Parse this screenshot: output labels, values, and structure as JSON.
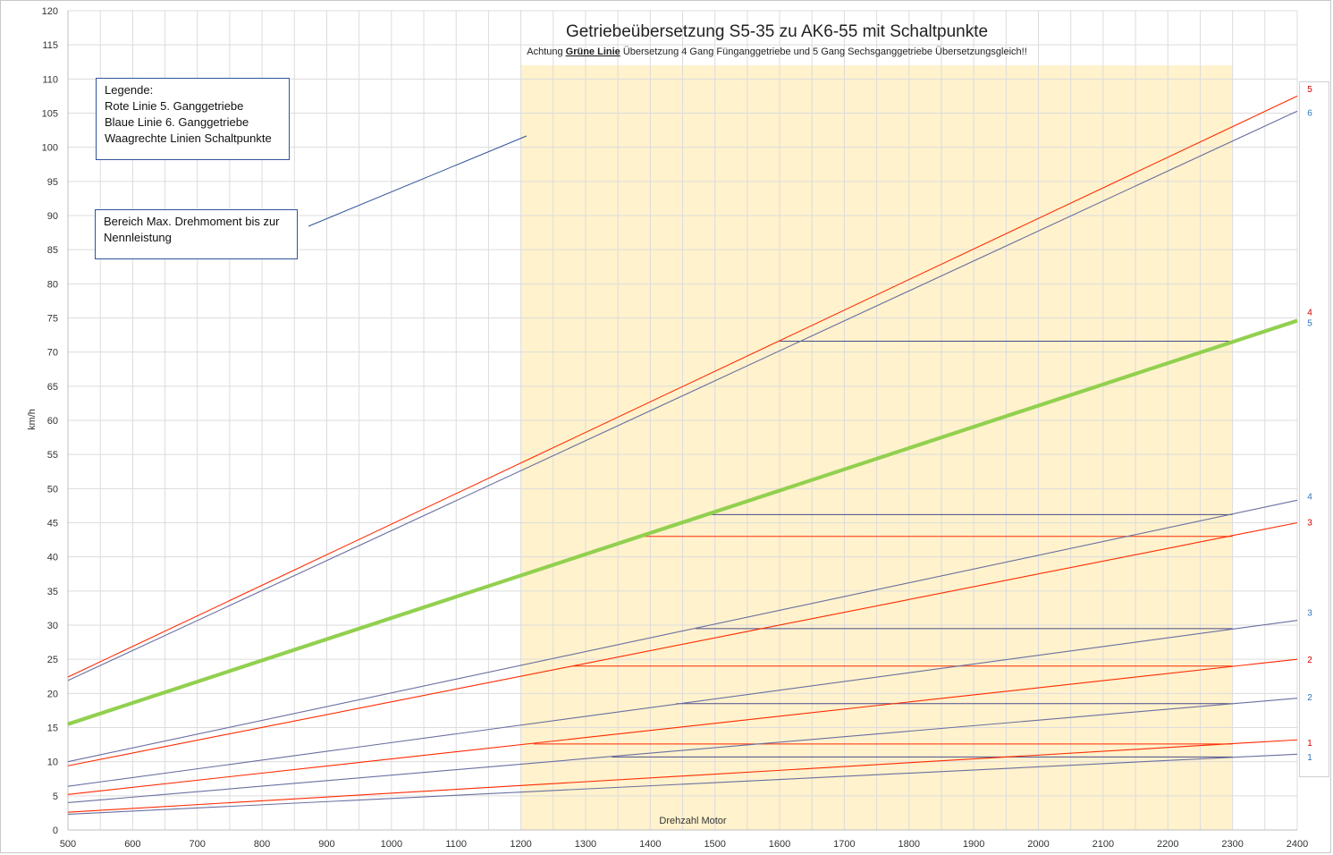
{
  "chart_data": {
    "type": "line",
    "title": "Getriebeübersetzung S5-35 zu AK6-55 mit Schaltpunkte",
    "subtitle_prefix": "Achtung ",
    "subtitle_bold": "Grüne Linie",
    "subtitle_suffix": " Übersetzung 4 Gang Fünganggetriebe und 5 Gang Sechsganggetriebe Übersetzungsgleich!!",
    "xlabel": "Drehzahl Motor",
    "ylabel": "km/h",
    "xlim": [
      500,
      2400
    ],
    "ylim": [
      0,
      120
    ],
    "x_ticks": [
      "500",
      "600",
      "700",
      "800",
      "900",
      "1000",
      "1100",
      "1200",
      "1300",
      "1400",
      "1500",
      "1600",
      "1700",
      "1800",
      "1900",
      "2000",
      "2100",
      "2200",
      "2300",
      "2400"
    ],
    "y_ticks": [
      "0",
      "5",
      "10",
      "15",
      "20",
      "25",
      "30",
      "35",
      "40",
      "45",
      "50",
      "55",
      "60",
      "65",
      "70",
      "75",
      "80",
      "85",
      "90",
      "95",
      "100",
      "105",
      "110",
      "115",
      "120"
    ],
    "grid": true,
    "highlight_band": {
      "x_from": 1200,
      "x_to": 2300,
      "y_from": 0,
      "y_to": 112,
      "color": "#fff2cc"
    },
    "series": [
      {
        "name": "1",
        "group": "red",
        "color": "#ff2a00",
        "x": [
          500,
          2400
        ],
        "y": [
          2.6,
          13.2
        ]
      },
      {
        "name": "2",
        "group": "red",
        "color": "#ff2a00",
        "x": [
          500,
          2400
        ],
        "y": [
          5.2,
          25.0
        ]
      },
      {
        "name": "3",
        "group": "red",
        "color": "#ff2a00",
        "x": [
          500,
          2400
        ],
        "y": [
          9.4,
          45.0
        ]
      },
      {
        "name": "4",
        "group": "green",
        "color": "#92d050",
        "x": [
          500,
          2400
        ],
        "y": [
          15.5,
          74.6
        ]
      },
      {
        "name": "5",
        "group": "red",
        "color": "#ff2a00",
        "x": [
          500,
          2400
        ],
        "y": [
          22.4,
          107.5
        ]
      },
      {
        "name": "1",
        "group": "blue",
        "color": "#6a6fa0",
        "x": [
          500,
          2400
        ],
        "y": [
          2.3,
          11.1
        ]
      },
      {
        "name": "2",
        "group": "blue",
        "color": "#6a6fa0",
        "x": [
          500,
          2400
        ],
        "y": [
          4.0,
          19.3
        ]
      },
      {
        "name": "3",
        "group": "blue",
        "color": "#6a6fa0",
        "x": [
          500,
          2400
        ],
        "y": [
          6.4,
          30.7
        ]
      },
      {
        "name": "4",
        "group": "blue",
        "color": "#6a6fa0",
        "x": [
          500,
          2400
        ],
        "y": [
          10.0,
          48.3
        ]
      },
      {
        "name": "5",
        "group": "green",
        "color": "#92d050",
        "x": [
          500,
          2400
        ],
        "y": [
          15.5,
          74.6
        ]
      },
      {
        "name": "6",
        "group": "blue",
        "color": "#6a6fa0",
        "x": [
          500,
          2400
        ],
        "y": [
          21.9,
          105.3
        ]
      }
    ],
    "end_labels": [
      {
        "text": "5",
        "y": 108.5,
        "color": "#d00000"
      },
      {
        "text": "6",
        "y": 105.0,
        "color": "#2e75b6"
      },
      {
        "text": "4",
        "y": 75.8,
        "color": "#d00000"
      },
      {
        "text": "5",
        "y": 74.2,
        "color": "#2e75b6"
      },
      {
        "text": "4",
        "y": 48.8,
        "color": "#2e75b6"
      },
      {
        "text": "3",
        "y": 45.0,
        "color": "#d00000"
      },
      {
        "text": "3",
        "y": 31.8,
        "color": "#2e75b6"
      },
      {
        "text": "2",
        "y": 24.9,
        "color": "#d00000"
      },
      {
        "text": "2",
        "y": 19.4,
        "color": "#2e75b6"
      },
      {
        "text": "1",
        "y": 12.7,
        "color": "#d00000"
      },
      {
        "text": "1",
        "y": 10.6,
        "color": "#2e75b6"
      }
    ],
    "shift_points": [
      {
        "x_from": 1600,
        "x_to": 2300,
        "y": 71.6,
        "color": "#4a4a8a"
      },
      {
        "x_from": 1490,
        "x_to": 2300,
        "y": 46.2,
        "color": "#4a4a8a"
      },
      {
        "x_from": 1380,
        "x_to": 2300,
        "y": 43.0,
        "color": "#ff2a00"
      },
      {
        "x_from": 1470,
        "x_to": 2300,
        "y": 29.5,
        "color": "#4a4a8a"
      },
      {
        "x_from": 1280,
        "x_to": 2300,
        "y": 24.0,
        "color": "#ff2a00"
      },
      {
        "x_from": 1440,
        "x_to": 2300,
        "y": 18.5,
        "color": "#4a4a8a"
      },
      {
        "x_from": 1220,
        "x_to": 2300,
        "y": 12.6,
        "color": "#ff2a00"
      },
      {
        "x_from": 1340,
        "x_to": 2300,
        "y": 10.7,
        "color": "#4a4a8a"
      }
    ]
  },
  "legend_box": {
    "line1": "Legende:",
    "line2": "Rote Linie 5. Ganggetriebe",
    "line3": "Blaue Linie 6. Ganggetriebe",
    "line4": "Waagrechte Linien Schaltpunkte"
  },
  "note_box": {
    "line1": "Bereich Max. Drehmoment bis zur",
    "line2": "Nennleistung"
  }
}
